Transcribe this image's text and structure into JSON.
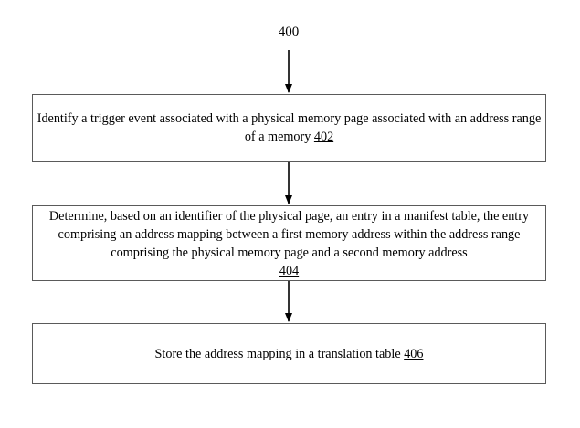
{
  "figure": {
    "label": "400"
  },
  "steps": [
    {
      "text": "Identify a trigger event associated with a physical memory page associated with an address range of a memory",
      "ref": "402"
    },
    {
      "text": "Determine, based on an identifier of the physical page, an entry in a manifest table, the entry comprising an address mapping between a first memory address within the address range comprising the physical memory page and a second memory address",
      "ref": "404"
    },
    {
      "text": "Store the address mapping in a translation table",
      "ref": "406"
    }
  ],
  "colors": {
    "line": "#000000",
    "box_border": "#5a5a5a",
    "background": "#ffffff"
  }
}
